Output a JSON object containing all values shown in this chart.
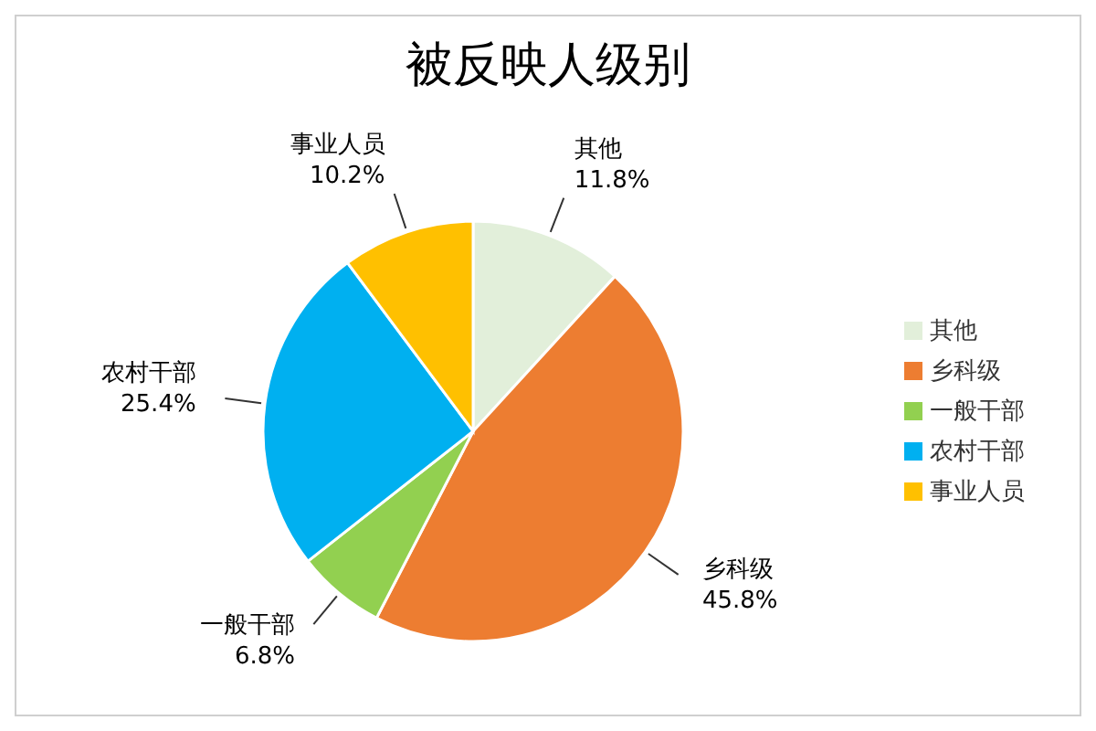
{
  "chart_data": {
    "type": "pie",
    "title": "被反映人级别",
    "categories": [
      "其他",
      "乡科级",
      "一般干部",
      "农村干部",
      "事业人员"
    ],
    "values": [
      11.8,
      45.8,
      6.8,
      25.4,
      10.2
    ],
    "value_labels": [
      "11.8%",
      "45.8%",
      "6.8%",
      "25.4%",
      "10.2%"
    ],
    "colors": [
      "#e2efda",
      "#ed7d31",
      "#92d050",
      "#00b0f0",
      "#ffc000"
    ],
    "legend": "right"
  }
}
